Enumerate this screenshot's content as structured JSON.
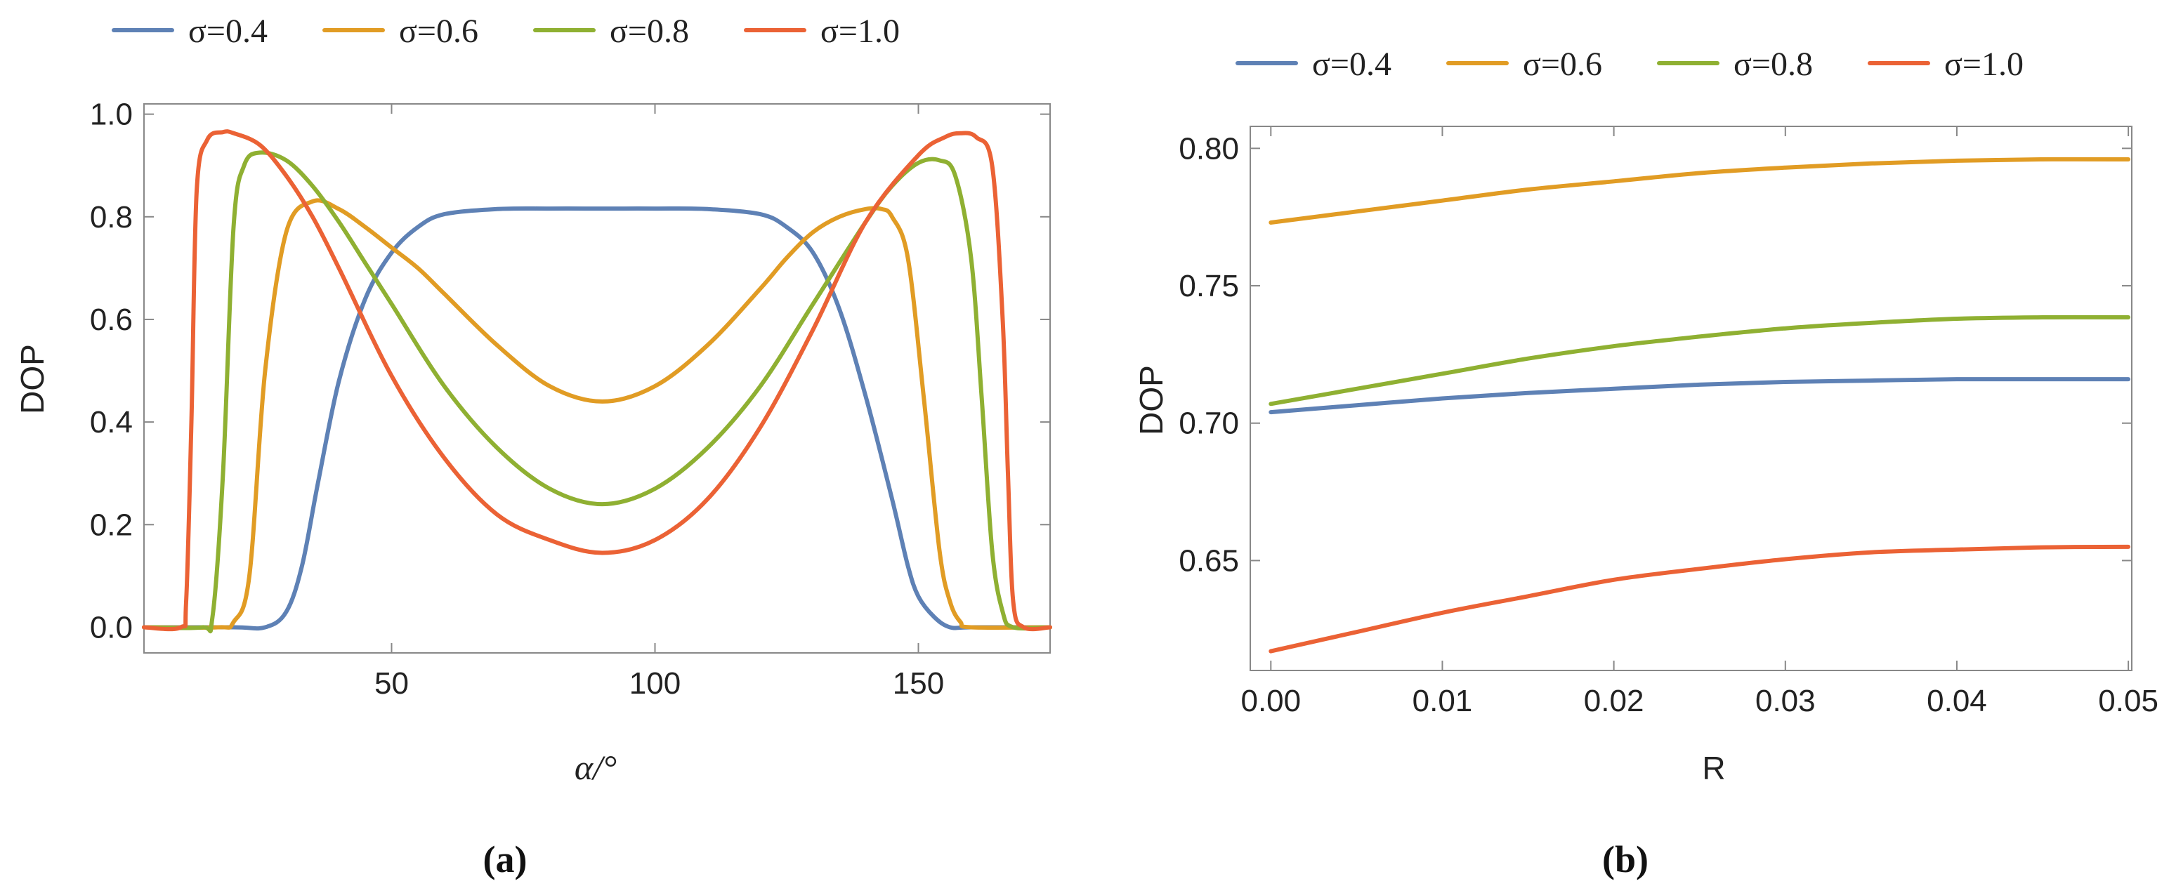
{
  "colors": {
    "s04": "#5E81B5",
    "s06": "#E19C24",
    "s08": "#8FB032",
    "s10": "#EB6235"
  },
  "chart_data": [
    {
      "id": "a",
      "type": "line",
      "panel_label": "(a)",
      "xlabel": "α/°",
      "ylabel": "DOP",
      "xlim": [
        3,
        175
      ],
      "ylim": [
        -0.05,
        1.02
      ],
      "xticks": [
        50,
        100,
        150
      ],
      "xtick_labels": [
        "50",
        "100",
        "150"
      ],
      "yticks": [
        0.0,
        0.2,
        0.4,
        0.6,
        0.8,
        1.0
      ],
      "ytick_labels": [
        "0.0",
        "0.2",
        "0.4",
        "0.6",
        "0.8",
        "1.0"
      ],
      "legend": [
        "σ=0.4",
        "σ=0.6",
        "σ=0.8",
        "σ=1.0"
      ],
      "series": [
        {
          "name": "σ=0.4",
          "color_key": "s04",
          "x": [
            3,
            20,
            26,
            30,
            33,
            36,
            40,
            45,
            50,
            55,
            60,
            70,
            80,
            90,
            100,
            110,
            120,
            125,
            130,
            135,
            140,
            145,
            148,
            150,
            153,
            156,
            160,
            175
          ],
          "y": [
            0,
            0,
            0.0,
            0.03,
            0.12,
            0.28,
            0.48,
            0.64,
            0.73,
            0.78,
            0.805,
            0.815,
            0.816,
            0.816,
            0.816,
            0.815,
            0.805,
            0.78,
            0.73,
            0.62,
            0.45,
            0.25,
            0.12,
            0.06,
            0.02,
            0.0,
            0,
            0
          ]
        },
        {
          "name": "σ=0.6",
          "color_key": "s06",
          "x": [
            3,
            17,
            20,
            23,
            26,
            30,
            35,
            40,
            45,
            50,
            55,
            60,
            70,
            80,
            90,
            100,
            110,
            120,
            125,
            130,
            135,
            140,
            143,
            145,
            148,
            151,
            154,
            156,
            158,
            160,
            175
          ],
          "y": [
            0,
            0,
            0.01,
            0.1,
            0.5,
            0.77,
            0.83,
            0.815,
            0.78,
            0.74,
            0.7,
            0.65,
            0.55,
            0.47,
            0.44,
            0.47,
            0.55,
            0.66,
            0.72,
            0.77,
            0.8,
            0.815,
            0.815,
            0.8,
            0.72,
            0.45,
            0.15,
            0.05,
            0.01,
            0,
            0
          ]
        },
        {
          "name": "σ=0.8",
          "color_key": "s08",
          "x": [
            3,
            14,
            16,
            18,
            20,
            22,
            25,
            30,
            35,
            40,
            45,
            50,
            60,
            70,
            80,
            90,
            100,
            110,
            120,
            130,
            140,
            145,
            150,
            154,
            157,
            160,
            162,
            164,
            166,
            168,
            175
          ],
          "y": [
            0,
            0,
            0.02,
            0.3,
            0.78,
            0.9,
            0.925,
            0.91,
            0.86,
            0.79,
            0.71,
            0.63,
            0.47,
            0.35,
            0.27,
            0.24,
            0.27,
            0.35,
            0.47,
            0.63,
            0.79,
            0.86,
            0.905,
            0.91,
            0.88,
            0.72,
            0.45,
            0.15,
            0.03,
            0,
            0
          ]
        },
        {
          "name": "σ=1.0",
          "color_key": "s10",
          "x": [
            3,
            10,
            11,
            12,
            13,
            15,
            18,
            20,
            25,
            30,
            35,
            40,
            50,
            60,
            70,
            80,
            90,
            100,
            110,
            120,
            130,
            140,
            150,
            155,
            158,
            161,
            164,
            166,
            167,
            168,
            170,
            175
          ],
          "y": [
            0,
            0,
            0.05,
            0.4,
            0.85,
            0.95,
            0.965,
            0.963,
            0.94,
            0.88,
            0.8,
            0.7,
            0.49,
            0.33,
            0.22,
            0.17,
            0.145,
            0.17,
            0.25,
            0.39,
            0.58,
            0.79,
            0.92,
            0.955,
            0.963,
            0.955,
            0.9,
            0.6,
            0.3,
            0.05,
            0,
            0
          ]
        }
      ]
    },
    {
      "id": "b",
      "type": "line",
      "panel_label": "(b)",
      "xlabel": "R",
      "ylabel": "DOP",
      "xlim": [
        -0.0012,
        0.0502
      ],
      "ylim": [
        0.61,
        0.808
      ],
      "xticks": [
        0.0,
        0.01,
        0.02,
        0.03,
        0.04,
        0.05
      ],
      "xtick_labels": [
        "0.00",
        "0.01",
        "0.02",
        "0.03",
        "0.04",
        "0.05"
      ],
      "yticks": [
        0.65,
        0.7,
        0.75,
        0.8
      ],
      "ytick_labels": [
        "0.65",
        "0.70",
        "0.75",
        "0.80"
      ],
      "legend": [
        "σ=0.4",
        "σ=0.6",
        "σ=0.8",
        "σ=1.0"
      ],
      "series": [
        {
          "name": "σ=0.4",
          "color_key": "s04",
          "x": [
            0,
            0.005,
            0.01,
            0.015,
            0.02,
            0.025,
            0.03,
            0.035,
            0.04,
            0.045,
            0.05
          ],
          "y": [
            0.704,
            0.7065,
            0.709,
            0.711,
            0.7125,
            0.714,
            0.715,
            0.7155,
            0.716,
            0.716,
            0.716
          ]
        },
        {
          "name": "σ=0.6",
          "color_key": "s06",
          "x": [
            0,
            0.005,
            0.01,
            0.015,
            0.02,
            0.025,
            0.03,
            0.035,
            0.04,
            0.045,
            0.05
          ],
          "y": [
            0.773,
            0.777,
            0.781,
            0.785,
            0.788,
            0.791,
            0.793,
            0.7945,
            0.7955,
            0.796,
            0.796
          ]
        },
        {
          "name": "σ=0.8",
          "color_key": "s08",
          "x": [
            0,
            0.005,
            0.01,
            0.015,
            0.02,
            0.025,
            0.03,
            0.035,
            0.04,
            0.045,
            0.05
          ],
          "y": [
            0.707,
            0.7125,
            0.718,
            0.7235,
            0.728,
            0.7315,
            0.7345,
            0.7365,
            0.738,
            0.7385,
            0.7385
          ]
        },
        {
          "name": "σ=1.0",
          "color_key": "s10",
          "x": [
            0,
            0.005,
            0.01,
            0.015,
            0.02,
            0.025,
            0.03,
            0.035,
            0.04,
            0.045,
            0.05
          ],
          "y": [
            0.617,
            0.624,
            0.631,
            0.637,
            0.643,
            0.647,
            0.6505,
            0.653,
            0.654,
            0.6548,
            0.655
          ]
        }
      ]
    }
  ]
}
